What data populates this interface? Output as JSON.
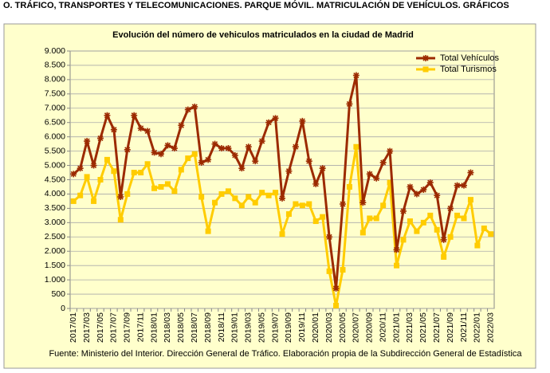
{
  "header": {
    "title": "O. TRÁFICO, TRANSPORTES Y TELECOMUNICACIONES. PARQUE MÓVIL. MATRICULACIÓN DE VEHÍCULOS. GRÁFICOS"
  },
  "chart_data": {
    "type": "line",
    "title": "Evolución del número de vehiculos matriculados en la ciudad de Madrid",
    "source": "Fuente: Ministerio del Interior. Dirección General de Tráfico. Elaboración propia de la Subdirección General de Estadística",
    "categories": [
      "2017/01",
      null,
      "2017/03",
      null,
      "2017/05",
      null,
      "2017/07",
      null,
      "2017/09",
      null,
      "2017/11",
      null,
      "2018/01",
      null,
      "2018/03",
      null,
      "2018/05",
      null,
      "2018/07",
      null,
      "2018/09",
      null,
      "2018/11",
      null,
      "2019/01",
      null,
      "2019/03",
      null,
      "2019/05",
      null,
      "2019/07",
      null,
      "2019/09",
      null,
      "2019/11",
      null,
      "2020/01",
      null,
      "2020/03",
      null,
      "2020/05",
      null,
      "2020/07",
      null,
      "2020/09",
      null,
      "2020/11",
      null,
      "2021/01",
      null,
      "2021/03",
      null,
      "2021/05",
      null,
      "2021/07",
      null,
      "2021/09",
      null,
      "2021/11",
      null,
      "2022/01",
      null,
      "2022/03"
    ],
    "series": [
      {
        "name": "Total Vehículos",
        "color": "#9c2a00",
        "marker": "star",
        "values": [
          4700,
          4900,
          5850,
          5000,
          5950,
          6750,
          6250,
          3900,
          5550,
          6750,
          6300,
          6200,
          5450,
          5400,
          5700,
          5600,
          6400,
          6950,
          7050,
          5100,
          5200,
          5750,
          5600,
          5600,
          5350,
          4900,
          5650,
          5150,
          5850,
          6500,
          6650,
          3850,
          4800,
          5650,
          6550,
          5150,
          4350,
          4900,
          2500,
          700,
          3650,
          7150,
          8150,
          3700,
          4700,
          4550,
          5100,
          5500,
          2050,
          3400,
          4250,
          4000,
          4150,
          4400,
          3950,
          2400,
          3500,
          4300,
          4300,
          4750,
          null,
          null,
          null
        ]
      },
      {
        "name": "Total Turismos",
        "color": "#ffcc00",
        "marker": "square",
        "values": [
          3750,
          3950,
          4600,
          3750,
          4500,
          5200,
          4800,
          3100,
          4000,
          4750,
          4750,
          5050,
          4200,
          4250,
          4350,
          4100,
          4850,
          5250,
          5400,
          3900,
          2700,
          3700,
          4000,
          4100,
          3850,
          3600,
          3900,
          3700,
          4050,
          3950,
          4050,
          2600,
          3300,
          3650,
          3600,
          3650,
          3050,
          3200,
          1300,
          100,
          1350,
          4250,
          5650,
          2650,
          3150,
          3150,
          3600,
          4400,
          1500,
          2400,
          3050,
          2700,
          3000,
          3250,
          2750,
          1800,
          2500,
          3250,
          3150,
          3800,
          2200,
          2800,
          2600
        ]
      }
    ],
    "ylim": [
      0,
      9000
    ],
    "yticks": [
      0,
      500,
      {
        "value": 1000,
        "label": "1.000"
      },
      {
        "value": 1500,
        "label": "1.500"
      },
      {
        "value": 2000,
        "label": "2.000"
      },
      {
        "value": 2500,
        "label": "2.500"
      },
      {
        "value": 3000,
        "label": "3.000"
      },
      {
        "value": 3500,
        "label": "3.500"
      },
      {
        "value": 4000,
        "label": "4.000"
      },
      {
        "value": 4500,
        "label": "4.500"
      },
      {
        "value": 5000,
        "label": "5.000"
      },
      {
        "value": 5500,
        "label": "5.500"
      },
      {
        "value": 6000,
        "label": "6.000"
      },
      {
        "value": 6500,
        "label": "6.500"
      },
      {
        "value": 7000,
        "label": "7.000"
      },
      {
        "value": 7500,
        "label": "7.500"
      },
      {
        "value": 8000,
        "label": "8.000"
      },
      {
        "value": 8500,
        "label": "8.500"
      },
      {
        "value": 9000,
        "label": "9.000"
      }
    ],
    "grid": true,
    "legend": "top-right",
    "background": "#ffffcc"
  }
}
